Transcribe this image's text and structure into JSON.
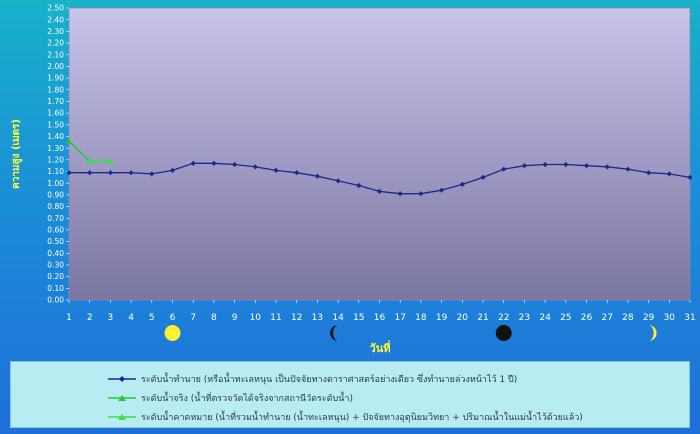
{
  "chart_data": {
    "type": "line",
    "ylabel": "ความสูง (เมตร)",
    "xlabel": "วันที่",
    "ylim": [
      0,
      2.5
    ],
    "ytick_step": 0.1,
    "x": [
      1,
      2,
      3,
      4,
      5,
      6,
      7,
      8,
      9,
      10,
      11,
      12,
      13,
      14,
      15,
      16,
      17,
      18,
      19,
      20,
      21,
      22,
      23,
      24,
      25,
      26,
      27,
      28,
      29,
      30,
      31
    ],
    "series": [
      {
        "name": "ระดับน้ำทำนาย  (หรือน้ำทะเลหนุน  เป็นปัจจัยทางดาราศาสตร์อย่างเดียว  ซึ่งทำนายล่วงหน้าไว้ 1  ปี)",
        "color": "#1a2a8a",
        "x": [
          1,
          2,
          3,
          4,
          5,
          6,
          7,
          8,
          9,
          10,
          11,
          12,
          13,
          14,
          15,
          16,
          17,
          18,
          19,
          20,
          21,
          22,
          23,
          24,
          25,
          26,
          27,
          28,
          29,
          30,
          31
        ],
        "values": [
          1.09,
          1.09,
          1.09,
          1.09,
          1.08,
          1.11,
          1.17,
          1.17,
          1.16,
          1.14,
          1.11,
          1.09,
          1.06,
          1.02,
          0.98,
          0.93,
          0.91,
          0.91,
          0.94,
          0.99,
          1.05,
          1.12,
          1.15,
          1.16,
          1.16,
          1.15,
          1.14,
          1.12,
          1.09,
          1.08,
          1.05
        ]
      },
      {
        "name": "ระดับน้ำจริง  (น้ำที่ตรวจวัดได้จริงจากสถานีวัดระดับน้ำ)",
        "color": "#27c63a",
        "x": [
          1,
          2
        ],
        "values": [
          1.36,
          1.19
        ]
      },
      {
        "name": "ระดับน้ำคาดหมาย  (น้ำที่รวมน้ำทำนาย  (น้ำทะเลหนุน)  + ปัจจัยทางอุตุนิยมวิทยา  + ปริมาณน้ำในแม่น้ำไว้ด้วยแล้ว)",
        "color": "#39e04a",
        "x": [
          2,
          3
        ],
        "values": [
          1.19,
          1.19
        ]
      }
    ],
    "moon_phases": [
      {
        "day": 6,
        "phase": "full-moon",
        "color": "#ffee33"
      },
      {
        "day": 14,
        "phase": "waning-crescent",
        "color": "#111111"
      },
      {
        "day": 22,
        "phase": "new-moon",
        "color": "#111111"
      },
      {
        "day": 29,
        "phase": "waxing-crescent",
        "color": "#ffee33"
      }
    ],
    "colors": {
      "plot_top": "#c8c4ea",
      "plot_bottom": "#7a76a2",
      "axis_text": "#ffffff",
      "ylabel_color": "#ffff33",
      "xlabel_color": "#ffff33"
    },
    "grid": false
  }
}
